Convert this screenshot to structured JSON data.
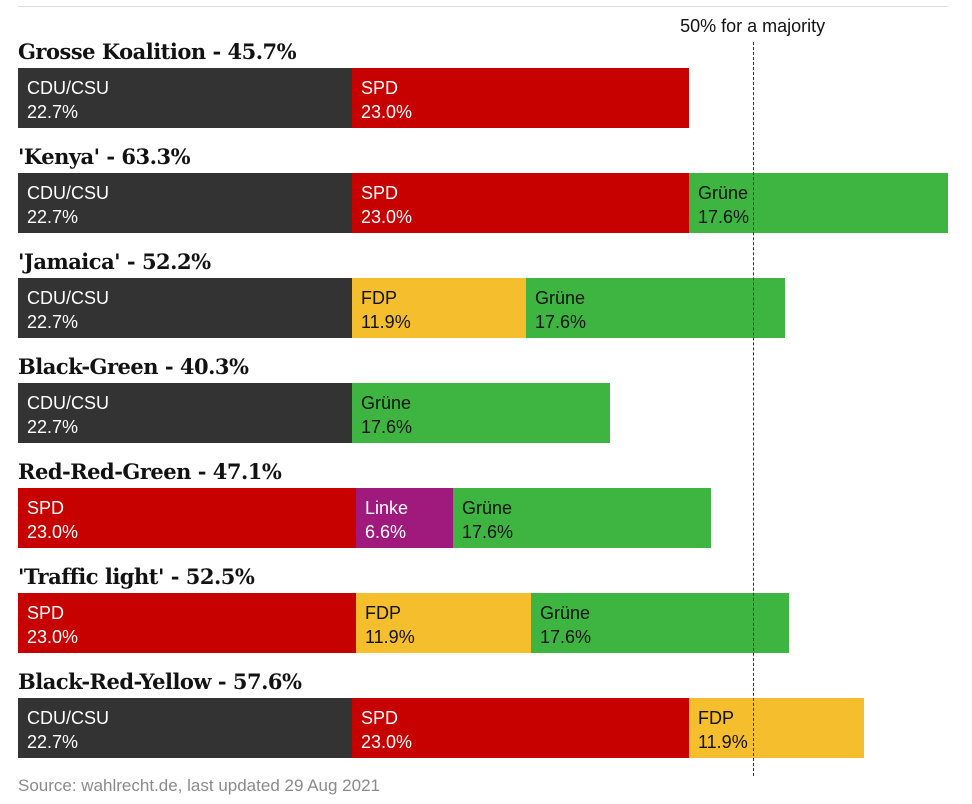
{
  "chart_data": {
    "type": "bar",
    "orientation": "horizontal",
    "stacked": true,
    "unit": "%",
    "xlim": [
      0,
      63.3
    ],
    "majority_threshold": 50,
    "majority_label": "50% for a majority",
    "source": "Source: wahlrecht.de, last updated 29 Aug 2021",
    "parties": {
      "CDU/CSU": {
        "color": "#333333",
        "text_color": "#ffffff"
      },
      "SPD": {
        "color": "#c70000",
        "text_color": "#ffffff"
      },
      "Grüne": {
        "color": "#3db540",
        "text_color": "#121212"
      },
      "FDP": {
        "color": "#f5be2c",
        "text_color": "#121212"
      },
      "Linke": {
        "color": "#a01a7d",
        "text_color": "#ffffff"
      }
    },
    "coalitions": [
      {
        "title": "Grosse Koalition - 45.7%",
        "total": 45.7,
        "segments": [
          {
            "party": "CDU/CSU",
            "value": 22.7,
            "label": "22.7%"
          },
          {
            "party": "SPD",
            "value": 23.0,
            "label": "23.0%"
          }
        ]
      },
      {
        "title": "'Kenya' - 63.3%",
        "total": 63.3,
        "segments": [
          {
            "party": "CDU/CSU",
            "value": 22.7,
            "label": "22.7%"
          },
          {
            "party": "SPD",
            "value": 23.0,
            "label": "23.0%"
          },
          {
            "party": "Grüne",
            "value": 17.6,
            "label": "17.6%"
          }
        ]
      },
      {
        "title": "'Jamaica' - 52.2%",
        "total": 52.2,
        "segments": [
          {
            "party": "CDU/CSU",
            "value": 22.7,
            "label": "22.7%"
          },
          {
            "party": "FDP",
            "value": 11.9,
            "label": "11.9%"
          },
          {
            "party": "Grüne",
            "value": 17.6,
            "label": "17.6%"
          }
        ]
      },
      {
        "title": "Black-Green - 40.3%",
        "total": 40.3,
        "segments": [
          {
            "party": "CDU/CSU",
            "value": 22.7,
            "label": "22.7%"
          },
          {
            "party": "Grüne",
            "value": 17.6,
            "label": "17.6%"
          }
        ]
      },
      {
        "title": "Red-Red-Green - 47.1%",
        "total": 47.1,
        "segments": [
          {
            "party": "SPD",
            "value": 23.0,
            "label": "23.0%"
          },
          {
            "party": "Linke",
            "value": 6.6,
            "label": "6.6%"
          },
          {
            "party": "Grüne",
            "value": 17.6,
            "label": "17.6%"
          }
        ]
      },
      {
        "title": "'Traffic light' - 52.5%",
        "total": 52.5,
        "segments": [
          {
            "party": "SPD",
            "value": 23.0,
            "label": "23.0%"
          },
          {
            "party": "FDP",
            "value": 11.9,
            "label": "11.9%"
          },
          {
            "party": "Grüne",
            "value": 17.6,
            "label": "17.6%"
          }
        ]
      },
      {
        "title": "Black-Red-Yellow - 57.6%",
        "total": 57.6,
        "segments": [
          {
            "party": "CDU/CSU",
            "value": 22.7,
            "label": "22.7%"
          },
          {
            "party": "SPD",
            "value": 23.0,
            "label": "23.0%"
          },
          {
            "party": "FDP",
            "value": 11.9,
            "label": "11.9%"
          }
        ]
      }
    ]
  }
}
